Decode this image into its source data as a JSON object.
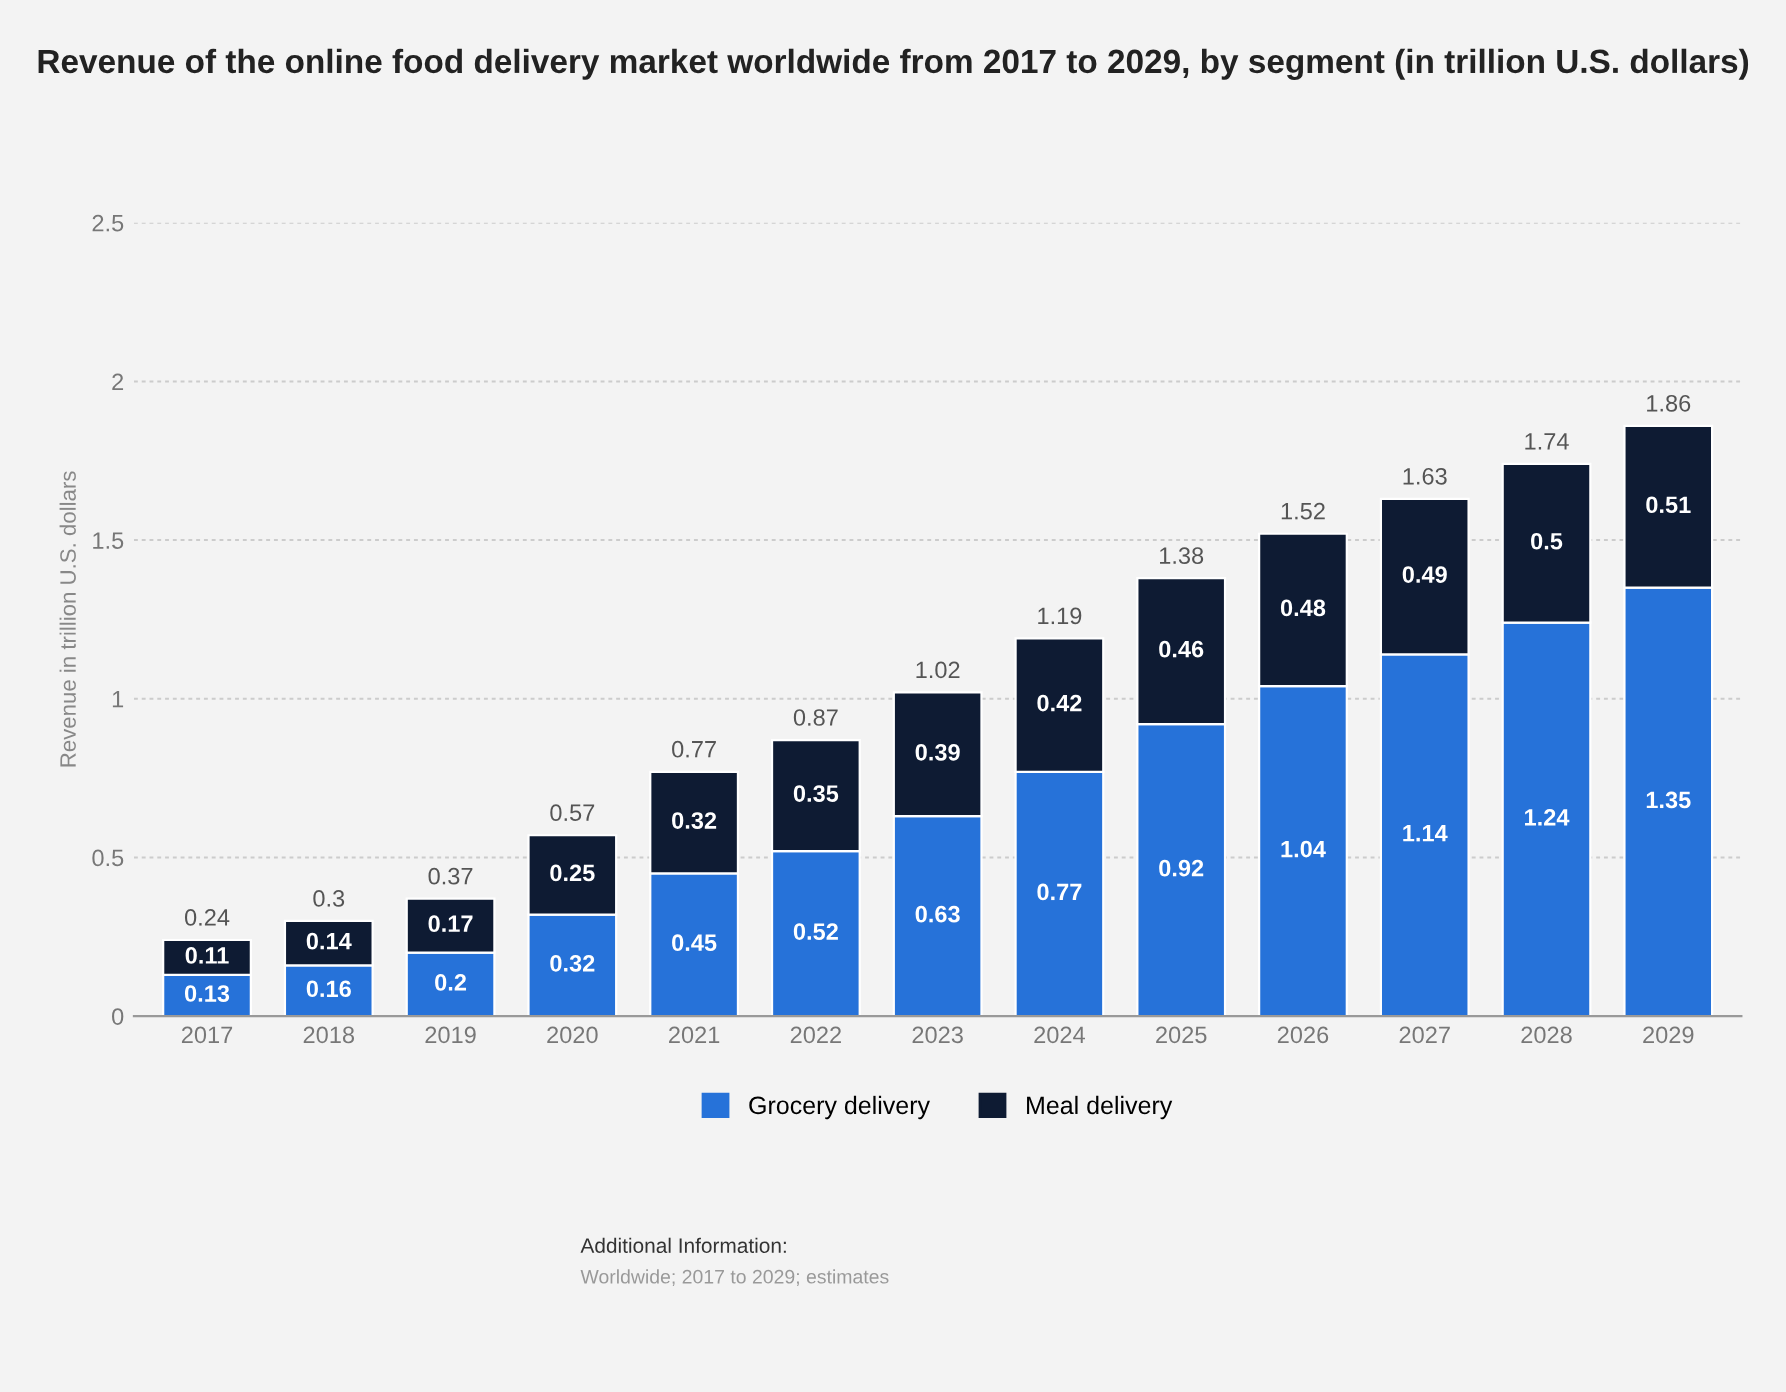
{
  "chart_data": {
    "type": "bar",
    "title": "Revenue of the online food delivery market worldwide from 2017 to 2029, by segment (in trillion U.S. dollars)",
    "ylabel": "Revenue in trillion U.S. dollars",
    "categories": [
      "2017",
      "2018",
      "2019",
      "2020",
      "2021",
      "2022",
      "2023",
      "2024",
      "2025",
      "2026",
      "2027",
      "2028",
      "2029"
    ],
    "series": [
      {
        "name": "Grocery delivery",
        "color": "#2672d9",
        "values": [
          0.13,
          0.16,
          0.2,
          0.32,
          0.45,
          0.52,
          0.63,
          0.77,
          0.92,
          1.04,
          1.14,
          1.24,
          1.35
        ]
      },
      {
        "name": "Meal delivery",
        "color": "#0e1b33",
        "values": [
          0.11,
          0.14,
          0.17,
          0.25,
          0.32,
          0.35,
          0.39,
          0.42,
          0.46,
          0.48,
          0.49,
          0.5,
          0.51
        ]
      }
    ],
    "stacked": true,
    "data_labels": true,
    "totals": [
      "0.24",
      "0.3",
      "0.37",
      "0.57",
      "0.77",
      "0.87",
      "1.02",
      "1.19",
      "1.38",
      "1.52",
      "1.63",
      "1.74",
      "1.86"
    ],
    "ylim": [
      0,
      2.5
    ],
    "yticks": [
      0,
      0.5,
      1,
      1.5,
      2,
      2.5
    ],
    "grid": "y",
    "legend": "bottom",
    "annotations": [
      "Additional Information:",
      "Worldwide; 2017 to 2029; estimates"
    ]
  }
}
